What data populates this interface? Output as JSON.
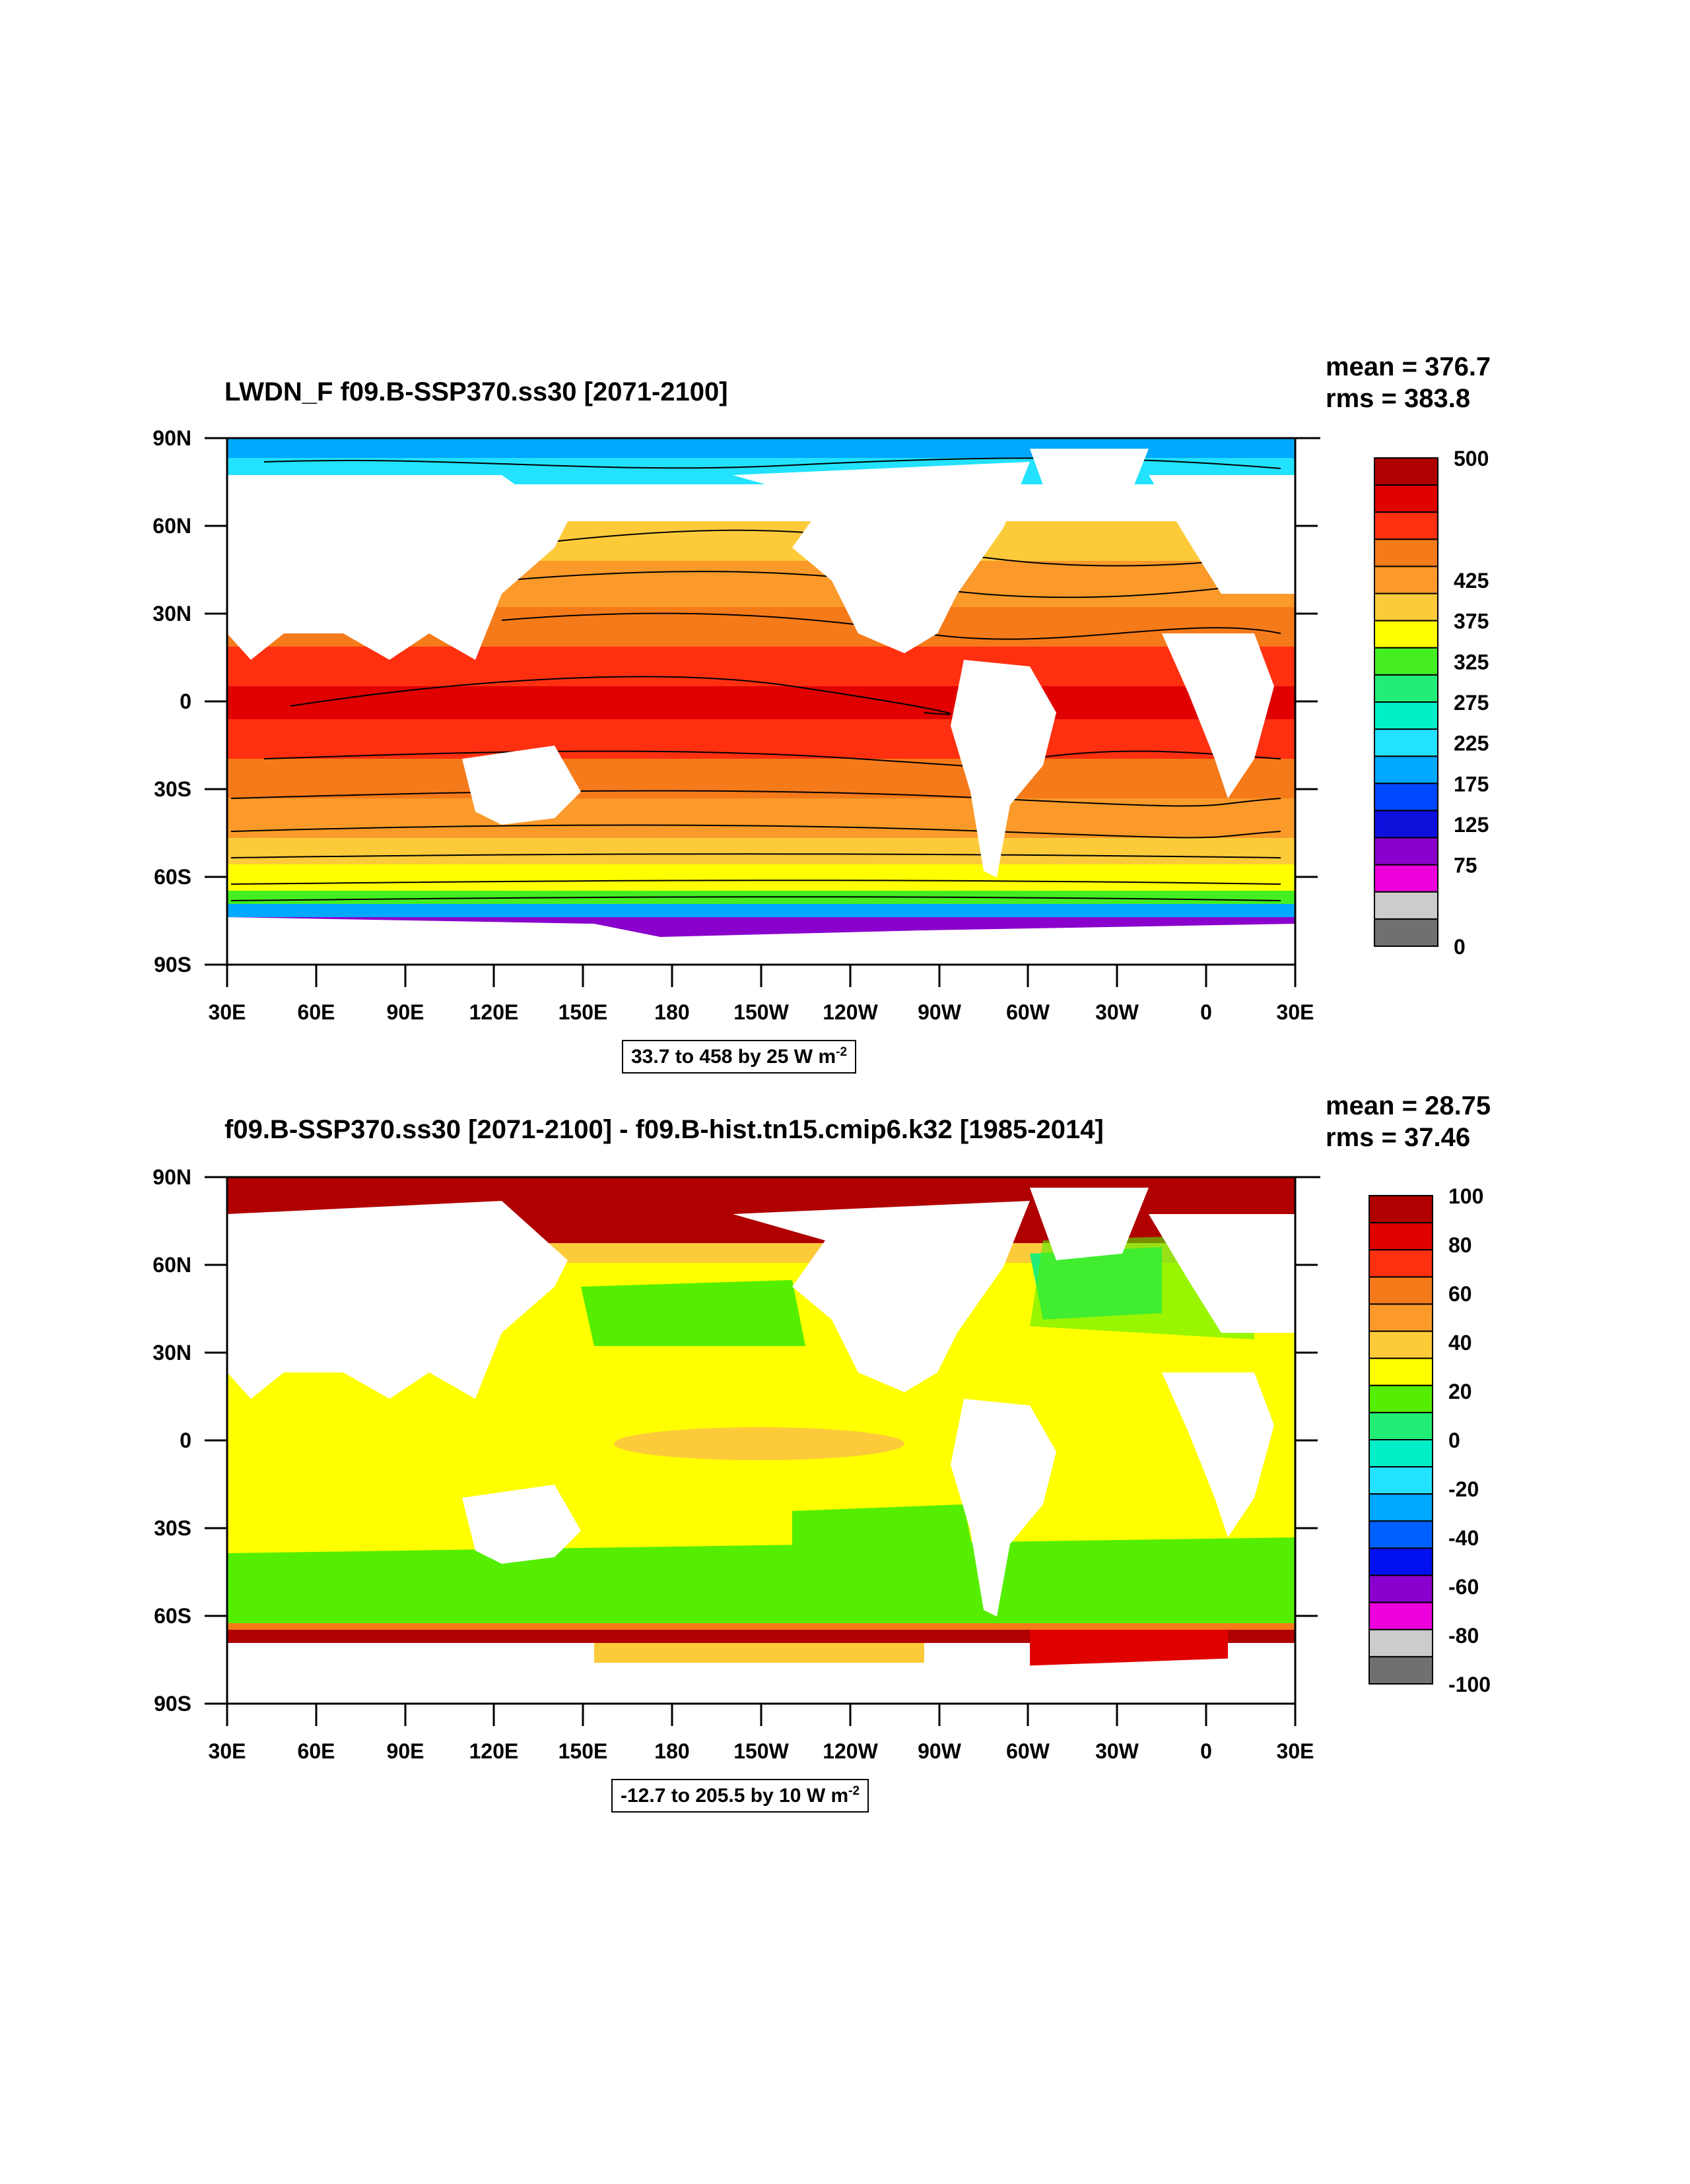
{
  "panels": [
    {
      "title": "LWDN_F f09.B-SSP370.ss30 [2071-2100]",
      "mean": "mean = 376.7",
      "rms": "rms = 383.8",
      "info": "33.7 to 458 by 25  W m",
      "info_sup": "-2",
      "colorbar_labels": [
        "500",
        "",
        "425",
        "375",
        "325",
        "275",
        "225",
        "175",
        "125",
        "75",
        "",
        "0"
      ],
      "colorbar_colors": [
        "#b00000",
        "#e00000",
        "#ff3010",
        "#f57a1a",
        "#fb9a2a",
        "#fdcb3a",
        "#ffff00",
        "#44ee22",
        "#22ee77",
        "#00eec8",
        "#22e2ff",
        "#00a8ff",
        "#0048ff",
        "#1010dd",
        "#8a00cc",
        "#ee00dd",
        "#cccccc",
        "#707070"
      ],
      "colorbar_label_rows": [
        0,
        2,
        3,
        4,
        5,
        6,
        7,
        8,
        9,
        10,
        11,
        12
      ]
    },
    {
      "title": "f09.B-SSP370.ss30 [2071-2100] - f09.B-hist.tn15.cmip6.k32 [1985-2014]",
      "mean": "mean = 28.75",
      "rms": "rms = 37.46",
      "info": "-12.7 to 205.5 by 10  W m",
      "info_sup": "-2",
      "colorbar_labels": [
        "100",
        "80",
        "60",
        "40",
        "20",
        "0",
        "-20",
        "-40",
        "-60",
        "-80",
        "-100"
      ],
      "colorbar_colors": [
        "#b00000",
        "#e00000",
        "#ff3010",
        "#f57a1a",
        "#fb9a2a",
        "#fdcb3a",
        "#ffff00",
        "#55ee00",
        "#22ee77",
        "#00eec8",
        "#22e2ff",
        "#00a8ff",
        "#0060ff",
        "#0010ee",
        "#8a00cc",
        "#ee00dd",
        "#cccccc",
        "#707070"
      ]
    }
  ],
  "axes": {
    "lat_labels": [
      "90N",
      "60N",
      "30N",
      "0",
      "30S",
      "60S",
      "90S"
    ],
    "lon_labels": [
      "30E",
      "60E",
      "90E",
      "120E",
      "150E",
      "180",
      "150W",
      "120W",
      "90W",
      "60W",
      "30W",
      "0",
      "30E"
    ]
  }
}
